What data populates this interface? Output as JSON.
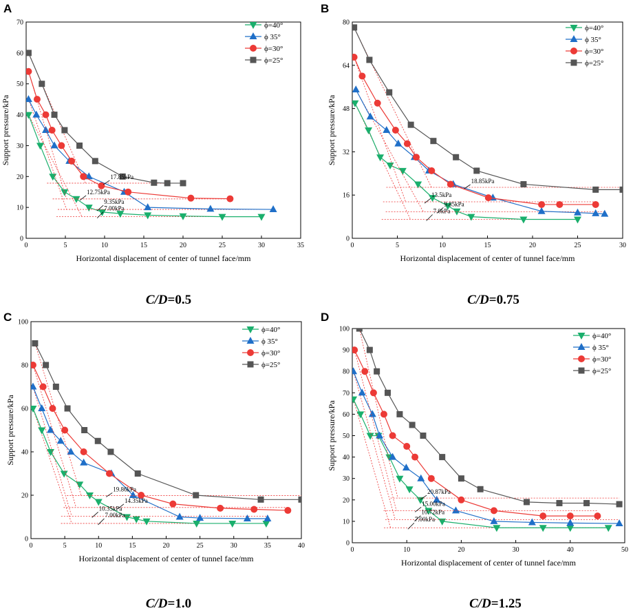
{
  "chart_data": [
    {
      "panel": "A",
      "type": "line",
      "caption_var": "C/D",
      "caption_val": "=0.5",
      "xlabel": "Horizontal displacement of center of tunnel face/mm",
      "ylabel": "Support pressure/kPa",
      "xlim": [
        0,
        35
      ],
      "ylim": [
        0,
        70
      ],
      "xticks": [
        0,
        5,
        10,
        15,
        20,
        25,
        30,
        35
      ],
      "yticks": [
        0,
        10,
        20,
        30,
        40,
        50,
        60,
        70
      ],
      "legend": "top-right",
      "series": [
        {
          "name": "ϕ=40°",
          "color": "#1aaf6c",
          "marker": "tri-down",
          "limit": 7.0,
          "x": [
            0.3,
            1.8,
            3.4,
            4.9,
            6.4,
            8.0,
            9.7,
            12.0,
            15.5,
            20.0,
            25.0,
            30.0
          ],
          "y": [
            40,
            30,
            20,
            15,
            12.75,
            10,
            8.5,
            8,
            7.5,
            7.2,
            7.0,
            7.0
          ]
        },
        {
          "name": "ϕ 35°",
          "color": "#1f6fc8",
          "marker": "tri-up",
          "limit": 9.35,
          "x": [
            0.3,
            1.3,
            2.5,
            3.6,
            5.5,
            8.0,
            12.5,
            15.5,
            23.5,
            31.5
          ],
          "y": [
            45,
            40,
            35,
            30,
            25,
            20,
            15,
            10,
            9.5,
            9.35
          ]
        },
        {
          "name": "ϕ=30°",
          "color": "#ec3a36",
          "marker": "circle",
          "limit": 12.75,
          "x": [
            0.3,
            1.4,
            2.5,
            3.3,
            4.5,
            5.8,
            7.3,
            9.6,
            13.0,
            21.0,
            26.0
          ],
          "y": [
            54,
            45,
            40,
            35,
            30,
            25,
            20,
            17,
            15,
            13,
            12.8
          ]
        },
        {
          "name": "ϕ=25°",
          "color": "#555555",
          "marker": "square",
          "limit": 17.85,
          "x": [
            0.3,
            2.0,
            3.6,
            4.9,
            6.8,
            8.8,
            12.3,
            16.3,
            18.0,
            20.0
          ],
          "y": [
            60,
            50,
            40,
            35,
            30,
            25,
            20,
            18,
            17.85,
            17.85
          ]
        }
      ],
      "annotations": [
        "17.85kPa",
        "12.75kPa",
        "9.35kPa",
        "7.00kPa"
      ]
    },
    {
      "panel": "B",
      "type": "line",
      "caption_var": "C/D",
      "caption_val": "=0.75",
      "xlabel": "Horizontal displacement of center of tunnel face/mm",
      "ylabel": "Support pressure/kPa",
      "xlim": [
        0,
        30
      ],
      "ylim": [
        0,
        80
      ],
      "xticks": [
        0,
        5,
        10,
        15,
        20,
        25,
        30
      ],
      "yticks": [
        0,
        16,
        32,
        48,
        64,
        80
      ],
      "legend": "top-right",
      "series": [
        {
          "name": "ϕ=40°",
          "color": "#1aaf6c",
          "marker": "tri-down",
          "limit": 7.0,
          "x": [
            0.3,
            1.8,
            3.1,
            4.2,
            5.6,
            7.3,
            8.9,
            10.6,
            11.6,
            13.2,
            19.0,
            25.0
          ],
          "y": [
            50,
            40,
            30,
            27,
            25,
            20,
            15,
            12,
            10,
            8,
            7,
            7
          ]
        },
        {
          "name": "ϕ 35°",
          "color": "#1f6fc8",
          "marker": "tri-up",
          "limit": 9.85,
          "x": [
            0.4,
            2.0,
            3.8,
            5.1,
            6.9,
            8.5,
            11.2,
            15.6,
            21.0,
            25.0,
            27.0,
            28.0
          ],
          "y": [
            55,
            45,
            40,
            35,
            30,
            25,
            20,
            15,
            10,
            9.5,
            9.2,
            9
          ]
        },
        {
          "name": "ϕ=30°",
          "color": "#ec3a36",
          "marker": "circle",
          "limit": 13.5,
          "x": [
            0.2,
            1.1,
            2.8,
            4.8,
            6.1,
            7.1,
            8.8,
            10.9,
            15.1,
            21.0,
            23.0,
            27.0
          ],
          "y": [
            67,
            60,
            50,
            40,
            35,
            30,
            25,
            20,
            15,
            12.5,
            12.5,
            12.5
          ]
        },
        {
          "name": "ϕ=25°",
          "color": "#555555",
          "marker": "square",
          "limit": 18.85,
          "x": [
            0.2,
            1.9,
            4.1,
            6.5,
            9.0,
            11.5,
            13.8,
            19.0,
            27.0,
            30.0
          ],
          "y": [
            78,
            66,
            54,
            42,
            36,
            30,
            25,
            20,
            18,
            18
          ]
        }
      ],
      "annotations": [
        "18.85kPa",
        "13.5kPa",
        "9.85kPa",
        "7.0kPa"
      ]
    },
    {
      "panel": "C",
      "type": "line",
      "caption_var": "C/D",
      "caption_val": "=1.0",
      "xlabel": "Horizontal displacement of center of tunnel face/mm",
      "ylabel": "Support pressure/kPa",
      "xlim": [
        0,
        40
      ],
      "ylim": [
        0,
        100
      ],
      "xticks": [
        0,
        5,
        10,
        15,
        20,
        25,
        30,
        35,
        40
      ],
      "yticks": [
        0,
        20,
        40,
        60,
        80,
        100
      ],
      "legend": "top-right",
      "series": [
        {
          "name": "ϕ=40°",
          "color": "#1aaf6c",
          "marker": "tri-down",
          "limit": 7.0,
          "x": [
            0.3,
            1.6,
            2.9,
            4.9,
            7.2,
            8.7,
            10.0,
            14.2,
            15.6,
            17.1,
            24.5,
            29.8,
            34.8
          ],
          "y": [
            60,
            50,
            40,
            30,
            25,
            20,
            17,
            10,
            9,
            8,
            7,
            7,
            7
          ]
        },
        {
          "name": "ϕ 35°",
          "color": "#1f6fc8",
          "marker": "tri-up",
          "limit": 10.35,
          "x": [
            0.3,
            1.6,
            2.9,
            4.4,
            5.9,
            7.8,
            11.9,
            15.1,
            22.0,
            25.0,
            32.0,
            35.0
          ],
          "y": [
            70,
            60,
            50,
            45,
            40,
            35,
            30,
            20,
            10,
            9.5,
            9.2,
            9.2
          ]
        },
        {
          "name": "ϕ=30°",
          "color": "#ec3a36",
          "marker": "circle",
          "limit": 14.35,
          "x": [
            0.3,
            1.8,
            3.2,
            5.0,
            7.8,
            11.6,
            16.3,
            21.0,
            28.0,
            33.0,
            38.0
          ],
          "y": [
            80,
            70,
            60,
            50,
            40,
            30,
            20,
            16,
            14,
            13.5,
            13
          ]
        },
        {
          "name": "ϕ=25°",
          "color": "#555555",
          "marker": "square",
          "limit": 19.86,
          "x": [
            0.6,
            2.2,
            3.7,
            5.4,
            7.9,
            9.9,
            11.8,
            15.8,
            24.4,
            34.0,
            40.0
          ],
          "y": [
            90,
            80,
            70,
            60,
            50,
            45,
            40,
            30,
            20,
            18,
            18
          ]
        }
      ],
      "annotations": [
        "19.86kPa",
        "14.35kPa",
        "10.35kPa",
        "7.00kPa"
      ]
    },
    {
      "panel": "D",
      "type": "line",
      "caption_var": "C/D",
      "caption_val": "=1.25",
      "xlabel": "Horizontal displacement of center of tunnel face/mm",
      "ylabel": "Support pressure/kPa",
      "xlim": [
        0,
        50
      ],
      "ylim": [
        0,
        100
      ],
      "xticks": [
        0,
        10,
        20,
        30,
        40,
        50
      ],
      "yticks": [
        0,
        10,
        20,
        30,
        40,
        50,
        60,
        70,
        80,
        90,
        100
      ],
      "legend": "top-right",
      "series": [
        {
          "name": "ϕ=40°",
          "color": "#1aaf6c",
          "marker": "tri-down",
          "limit": 7.0,
          "x": [
            0.2,
            1.5,
            3.3,
            4.8,
            6.8,
            8.7,
            10.5,
            12.5,
            14.0,
            16.5,
            26.5,
            35.0,
            40.0,
            47.0
          ],
          "y": [
            67,
            60,
            50,
            50,
            40,
            30,
            25,
            20,
            15,
            10,
            7,
            7,
            7,
            7
          ]
        },
        {
          "name": "ϕ 35°",
          "color": "#1f6fc8",
          "marker": "tri-up",
          "limit": 10.72,
          "x": [
            0.2,
            1.8,
            3.7,
            5.0,
            7.4,
            9.9,
            12.6,
            15.5,
            19.0,
            26.0,
            33.0,
            40.0,
            49.0
          ],
          "y": [
            80,
            70,
            60,
            50,
            40,
            35,
            30,
            20,
            15,
            10,
            9.5,
            9.2,
            9
          ]
        },
        {
          "name": "ϕ=30°",
          "color": "#ec3a36",
          "marker": "circle",
          "limit": 15.0,
          "x": [
            0.4,
            2.3,
            3.9,
            5.8,
            7.4,
            10.0,
            11.5,
            14.5,
            20.0,
            26.0,
            35.0,
            40.0,
            45.0
          ],
          "y": [
            90,
            80,
            70,
            60,
            50,
            45,
            40,
            30,
            20,
            15,
            12.5,
            12.5,
            12.5
          ]
        },
        {
          "name": "ϕ=25°",
          "color": "#555555",
          "marker": "square",
          "limit": 20.87,
          "x": [
            1.3,
            3.2,
            4.5,
            6.5,
            8.7,
            11.0,
            13.0,
            16.5,
            20.0,
            23.5,
            32.0,
            38.0,
            43.0,
            49.0
          ],
          "y": [
            100,
            90,
            80,
            70,
            60,
            55,
            50,
            40,
            30,
            25,
            19,
            18.5,
            18.5,
            18
          ]
        }
      ],
      "annotations": [
        "20.87kPa",
        "15.00kPa",
        "10.72kPa",
        "7.00kPa"
      ]
    }
  ]
}
